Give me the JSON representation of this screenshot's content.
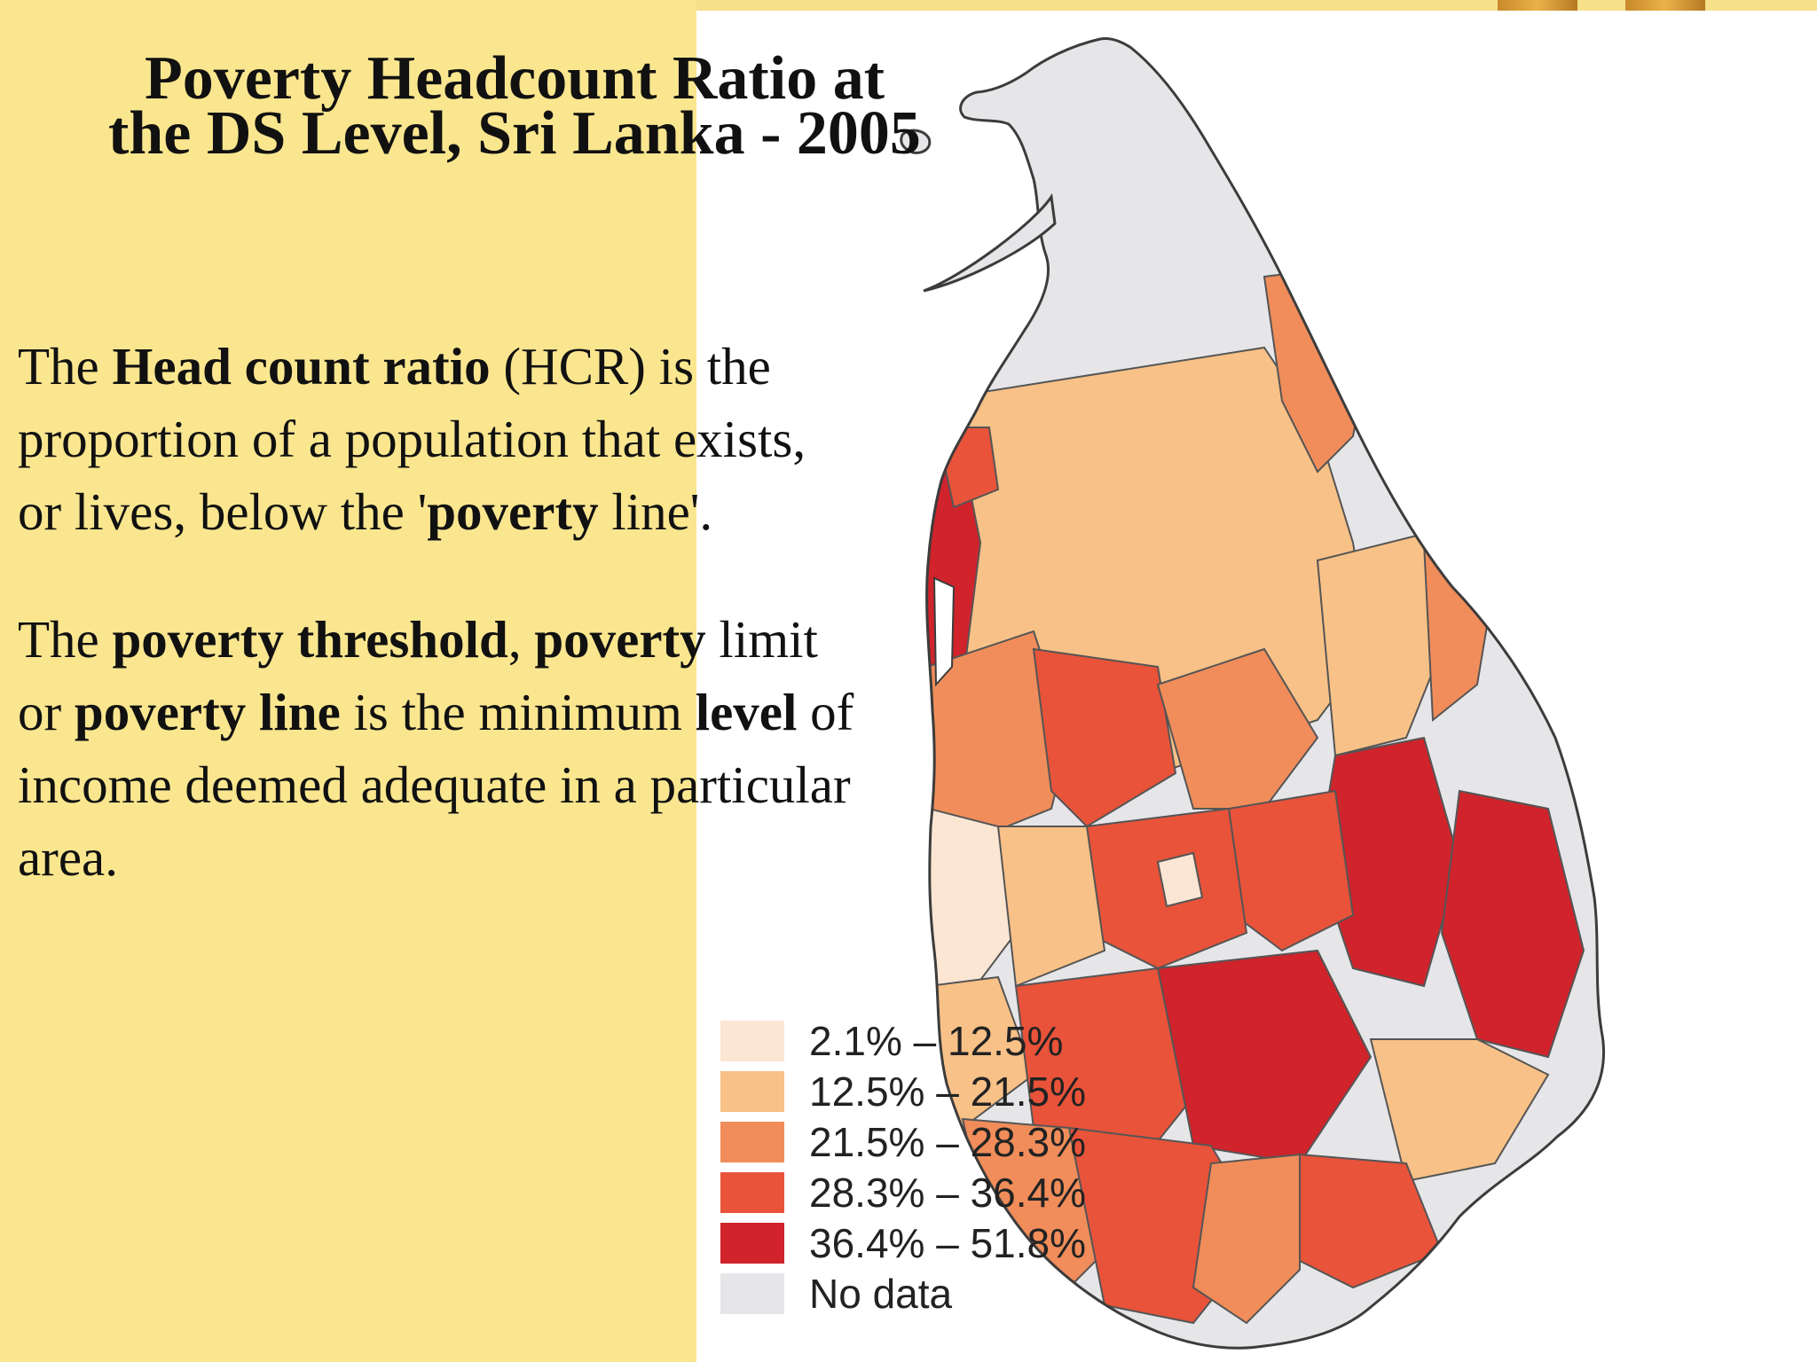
{
  "title": {
    "line1": "Poverty Headcount Ratio at",
    "line2": "the DS Level, Sri Lanka - 2005"
  },
  "paragraph1": {
    "l1_a": "The ",
    "l1_b": "Head count ratio",
    "l1_c": " (HCR) is the",
    "l2": "proportion of a population that exists,",
    "l3_a": "or lives, below the '",
    "l3_b": "poverty",
    "l3_c": " line'."
  },
  "paragraph2": {
    "l1_a": "The ",
    "l1_b": "poverty threshold",
    "l1_c": ", ",
    "l1_d": "poverty",
    "l1_e": " limit",
    "l2_a": "or ",
    "l2_b": "poverty line",
    "l2_c": " is the minimum ",
    "l2_d": "level",
    "l2_e": " of",
    "l3": "income deemed adequate in a particular",
    "l4": "area."
  },
  "legend": [
    {
      "label": "2.1% – 12.5%",
      "color": "#fbe6d4"
    },
    {
      "label": "12.5% – 21.5%",
      "color": "#f8c187"
    },
    {
      "label": "21.5% – 28.3%",
      "color": "#f18d5a"
    },
    {
      "label": "28.3% – 36.4%",
      "color": "#e8533a"
    },
    {
      "label": "36.4% – 51.8%",
      "color": "#d0232b"
    },
    {
      "label": "No data",
      "color": "#e6e6e9"
    }
  ],
  "colors": {
    "background": "#fae68f",
    "map_panel": "#ffffff",
    "outline": "#4a4a4a"
  }
}
